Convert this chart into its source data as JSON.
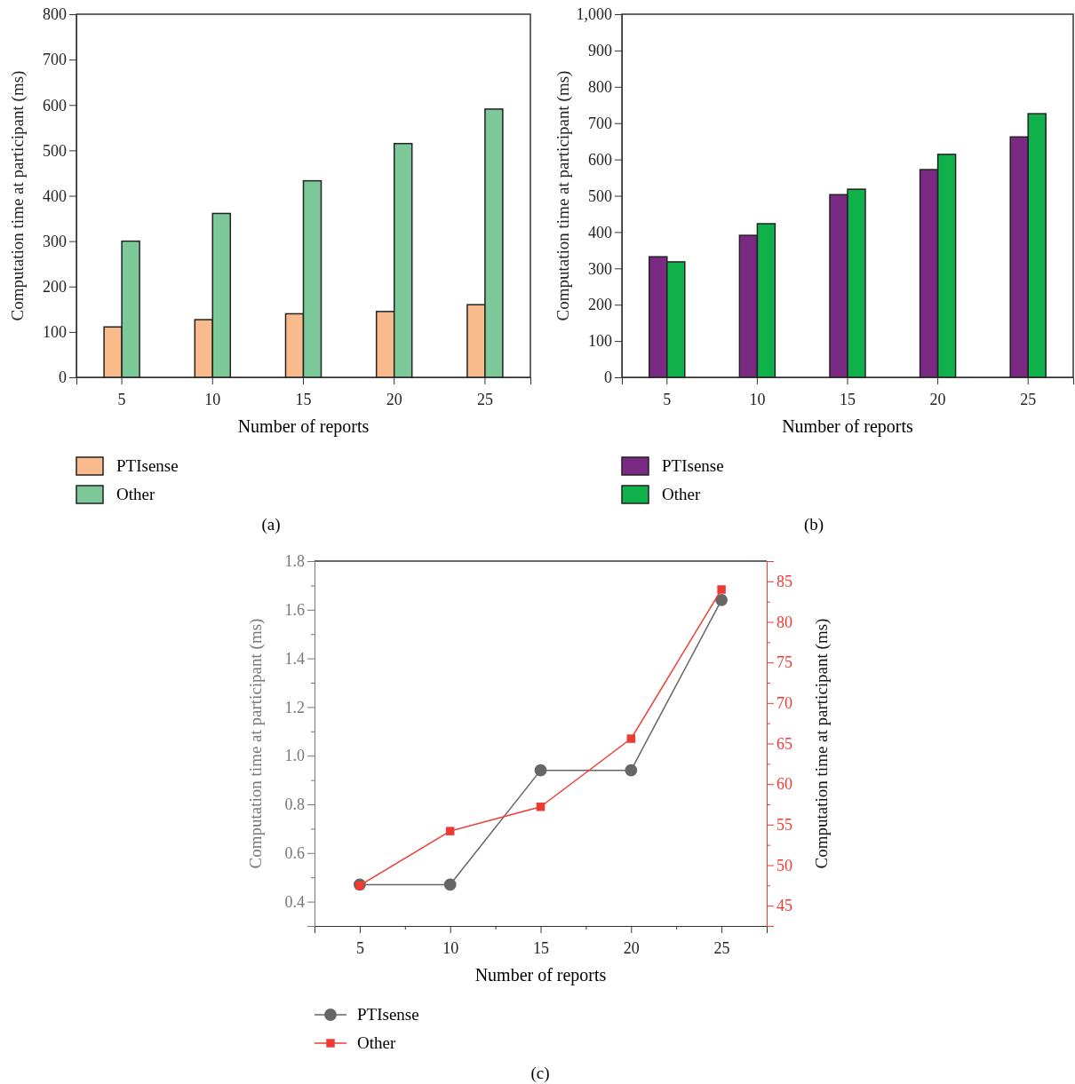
{
  "chart_data": [
    {
      "type": "bar",
      "xlabel": "Number of reports",
      "ylabel": "Computation time at participant (ms)",
      "categories": [
        "5",
        "10",
        "15",
        "20",
        "25"
      ],
      "series": [
        {
          "name": "PTIsense",
          "color": "#f9bb8b",
          "values": [
            111,
            127,
            140,
            145,
            160
          ]
        },
        {
          "name": "Other",
          "color": "#7dc898",
          "values": [
            300,
            361,
            433,
            515,
            591
          ]
        }
      ],
      "ylim": [
        0,
        800
      ],
      "yticks": [
        0,
        100,
        200,
        300,
        400,
        500,
        600,
        700,
        800
      ],
      "legend": "bottom left",
      "annotations": [
        "(a)"
      ]
    },
    {
      "type": "bar",
      "xlabel": "Number of reports",
      "ylabel": "Computation time at participant (ms)",
      "categories": [
        "5",
        "10",
        "15",
        "20",
        "25"
      ],
      "series": [
        {
          "name": "PTIsense",
          "color": "#7b2a84",
          "values": [
            332,
            391,
            503,
            572,
            662
          ]
        },
        {
          "name": "Other",
          "color": "#10b04a",
          "values": [
            318,
            423,
            518,
            614,
            726
          ]
        }
      ],
      "ylim": [
        0,
        1000
      ],
      "yticks": [
        0,
        100,
        200,
        300,
        400,
        500,
        600,
        700,
        800,
        900,
        {
          "value": 1000,
          "label": "1,000"
        }
      ],
      "legend": "bottom left",
      "annotations": [
        "(b)"
      ]
    },
    {
      "type": "line",
      "xlabel": "Number of reports",
      "ylabel": "Computation time at participant (ms)",
      "y2label": "Computation time at participant (ms)",
      "x": [
        5,
        10,
        15,
        20,
        25
      ],
      "series": [
        {
          "name": "PTIsense",
          "color": "#666666",
          "marker": "circle",
          "values": [
            0.47,
            0.47,
            0.94,
            0.94,
            1.64
          ]
        },
        {
          "name": "Other",
          "color": "#ee3a32",
          "marker": "square",
          "axis": "y2",
          "values": [
            47.5,
            54.2,
            57.2,
            65.6,
            84.0
          ]
        }
      ],
      "xlim": [
        2.5,
        27.5
      ],
      "xticks": [
        {
          "value": 2.5,
          "label": null
        },
        5,
        {
          "value": 7.5,
          "label": null
        },
        10,
        {
          "value": 12.5,
          "label": null
        },
        15,
        {
          "value": 17.5,
          "label": null
        },
        20,
        {
          "value": 22.5,
          "label": null
        },
        25,
        {
          "value": 27.5,
          "label": null
        }
      ],
      "ylim": [
        0.3,
        1.8
      ],
      "yticks": [
        {
          "value": 0.3,
          "label": null
        },
        {
          "value": 0.4,
          "label": "0.4"
        },
        {
          "value": 0.5,
          "label": null
        },
        {
          "value": 0.6,
          "label": "0.6"
        },
        {
          "value": 0.7,
          "label": null
        },
        {
          "value": 0.8,
          "label": "0.8"
        },
        {
          "value": 0.9,
          "label": null
        },
        {
          "value": 1.0,
          "label": "1.0"
        },
        {
          "value": 1.1,
          "label": null
        },
        {
          "value": 1.2,
          "label": "1.2"
        },
        {
          "value": 1.3,
          "label": null
        },
        {
          "value": 1.4,
          "label": "1.4"
        },
        {
          "value": 1.5,
          "label": null
        },
        {
          "value": 1.6,
          "label": "1.6"
        },
        {
          "value": 1.7,
          "label": null
        },
        {
          "value": 1.8,
          "label": "1.8"
        }
      ],
      "y2lim": [
        42.5,
        87.5
      ],
      "y2ticks": [
        {
          "value": 42.5,
          "label": null
        },
        45,
        {
          "value": 47.5,
          "label": null
        },
        50,
        {
          "value": 52.5,
          "label": null
        },
        55,
        {
          "value": 57.5,
          "label": null
        },
        60,
        {
          "value": 62.5,
          "label": null
        },
        65,
        {
          "value": 67.5,
          "label": null
        },
        70,
        {
          "value": 72.5,
          "label": null
        },
        75,
        {
          "value": 77.5,
          "label": null
        },
        80,
        {
          "value": 82.5,
          "label": null
        },
        85,
        {
          "value": 87.5,
          "label": null
        }
      ],
      "legend": "bottom left",
      "annotations": [
        "(c)"
      ]
    }
  ]
}
